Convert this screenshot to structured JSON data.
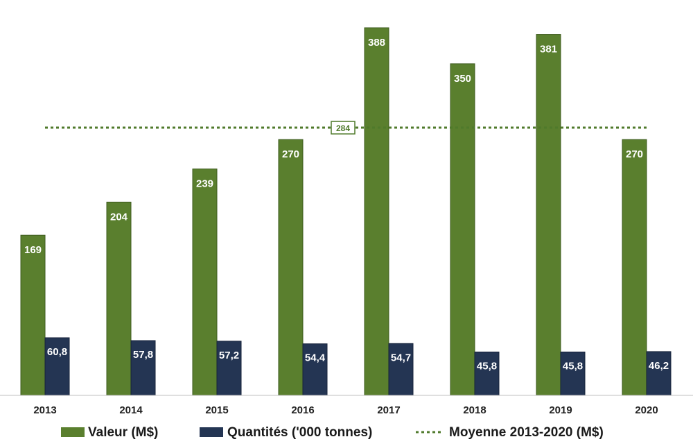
{
  "chart_data": {
    "type": "bar",
    "categories": [
      "2013",
      "2014",
      "2015",
      "2016",
      "2017",
      "2018",
      "2019",
      "2020"
    ],
    "series": [
      {
        "name": "Valeur (M$)",
        "values": [
          169,
          204,
          239,
          270,
          388,
          350,
          381,
          270
        ],
        "labels": [
          "169",
          "204",
          "239",
          "270",
          "388",
          "350",
          "381",
          "270"
        ],
        "color": "#5a7f2e"
      },
      {
        "name": "Quantités ('000 tonnes)",
        "values": [
          60.8,
          57.8,
          57.2,
          54.4,
          54.7,
          45.8,
          45.8,
          46.2
        ],
        "labels": [
          "60,8",
          "57,8",
          "57,2",
          "54,4",
          "54,7",
          "45,8",
          "45,8",
          "46,2"
        ],
        "color": "#243553"
      }
    ],
    "reference_line": {
      "name": "Moyenne 2013-2020 (M$)",
      "value": 284,
      "label": "284",
      "color": "#4f7a2b",
      "style": "dotted"
    },
    "ylim": [
      0,
      400
    ],
    "grid": false,
    "legend_position": "bottom"
  }
}
